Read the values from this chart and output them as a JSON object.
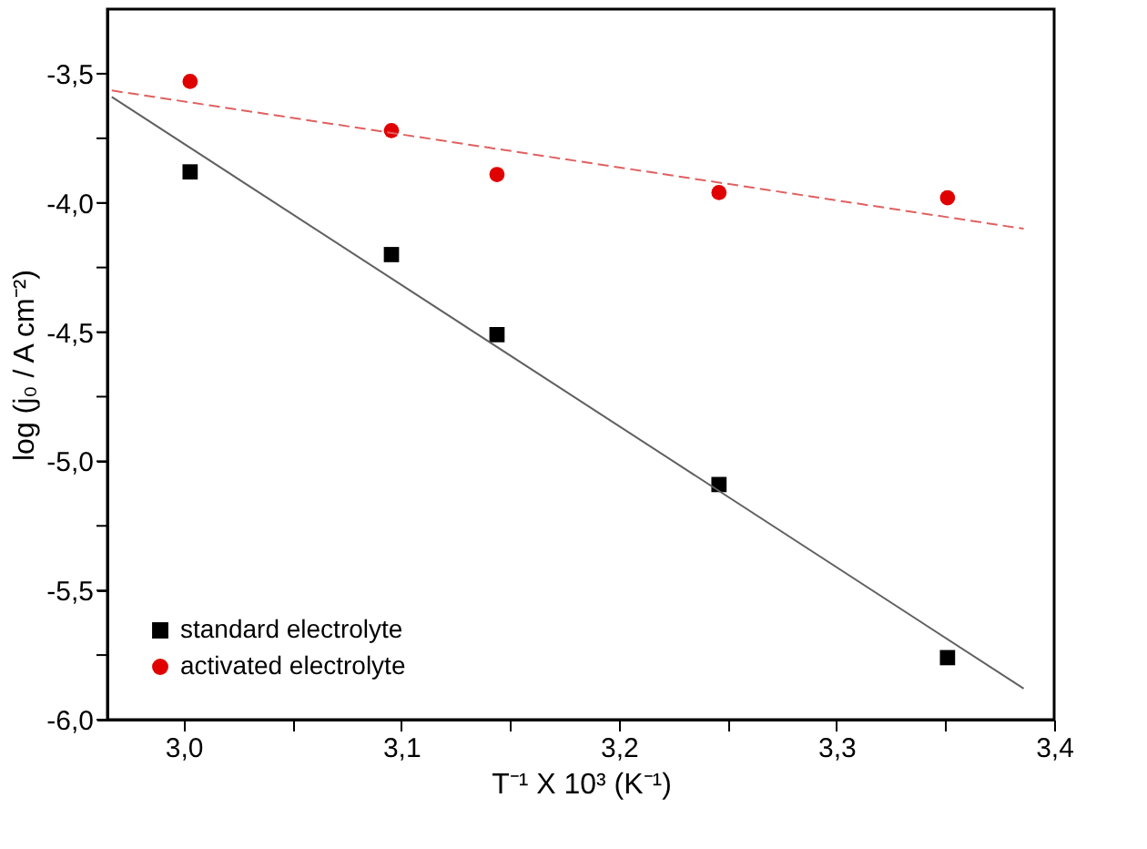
{
  "chart_data": {
    "type": "scatter",
    "xlabel": "T⁻¹ X 10³ (K⁻¹)",
    "ylabel": "log (j₀ / A cm⁻²)",
    "xlim": [
      2.965,
      3.4
    ],
    "ylim": [
      -6.0,
      -3.25
    ],
    "xticks": [
      {
        "value": 3.0,
        "label": "3,0"
      },
      {
        "value": 3.05,
        "label": null
      },
      {
        "value": 3.1,
        "label": "3,1"
      },
      {
        "value": 3.15,
        "label": null
      },
      {
        "value": 3.2,
        "label": "3,2"
      },
      {
        "value": 3.25,
        "label": null
      },
      {
        "value": 3.3,
        "label": "3,3"
      },
      {
        "value": 3.35,
        "label": null
      },
      {
        "value": 3.4,
        "label": "3,4"
      }
    ],
    "yticks": [
      {
        "value": -6.0,
        "label": "-6,0"
      },
      {
        "value": -5.75,
        "label": null
      },
      {
        "value": -5.5,
        "label": "-5,5"
      },
      {
        "value": -5.25,
        "label": null
      },
      {
        "value": -5.0,
        "label": "-5,0"
      },
      {
        "value": -4.75,
        "label": null
      },
      {
        "value": -4.5,
        "label": "-4,5"
      },
      {
        "value": -4.25,
        "label": null
      },
      {
        "value": -4.0,
        "label": "-4,0"
      },
      {
        "value": -3.75,
        "label": null
      },
      {
        "value": -3.5,
        "label": "-3,5"
      }
    ],
    "grid": false,
    "legend": "bottom left",
    "series": [
      {
        "name": "standard electrolyte",
        "color": "#000000",
        "marker": "square",
        "x": [
          3.003,
          3.0955,
          3.144,
          3.246,
          3.351
        ],
        "values": [
          -3.88,
          -4.2,
          -4.51,
          -5.09,
          -5.76
        ]
      },
      {
        "name": "activated electrolyte",
        "color": "#e00000",
        "marker": "circle",
        "x": [
          3.003,
          3.0955,
          3.144,
          3.246,
          3.351
        ],
        "values": [
          -3.53,
          -3.72,
          -3.89,
          -3.96,
          -3.98
        ]
      },
      {
        "type": "line",
        "color": "#606060",
        "line_style": "solid",
        "x": [
          2.967,
          3.386
        ],
        "values": [
          -3.59,
          -5.88
        ]
      },
      {
        "type": "line",
        "color": "#e06060",
        "line_style": "dashed",
        "x": [
          2.967,
          3.386
        ],
        "values": [
          -3.565,
          -4.1
        ]
      }
    ]
  }
}
